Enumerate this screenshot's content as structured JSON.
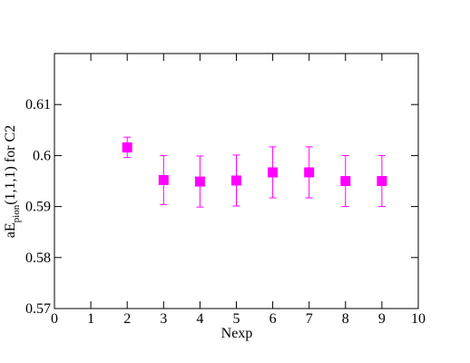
{
  "chart_data": {
    "type": "scatter",
    "x_label": "Nexp",
    "y_label": {
      "main": "aE",
      "sub": "pion",
      "rest": "(1,1,1)  for C2"
    },
    "x": [
      2,
      3,
      4,
      5,
      6,
      7,
      8,
      9
    ],
    "values": [
      0.6016,
      0.5952,
      0.5949,
      0.5951,
      0.5967,
      0.5967,
      0.595,
      0.595
    ],
    "errors": [
      0.002,
      0.0048,
      0.005,
      0.005,
      0.005,
      0.005,
      0.005,
      0.005
    ],
    "color": "#ff00ff",
    "xlim": [
      0,
      10
    ],
    "xticks": [
      0,
      1,
      2,
      3,
      4,
      5,
      6,
      7,
      8,
      9,
      10
    ],
    "ylim": [
      0.57,
      0.62
    ],
    "yticks": [
      0.57,
      0.58,
      0.59,
      0.6,
      0.61
    ]
  }
}
